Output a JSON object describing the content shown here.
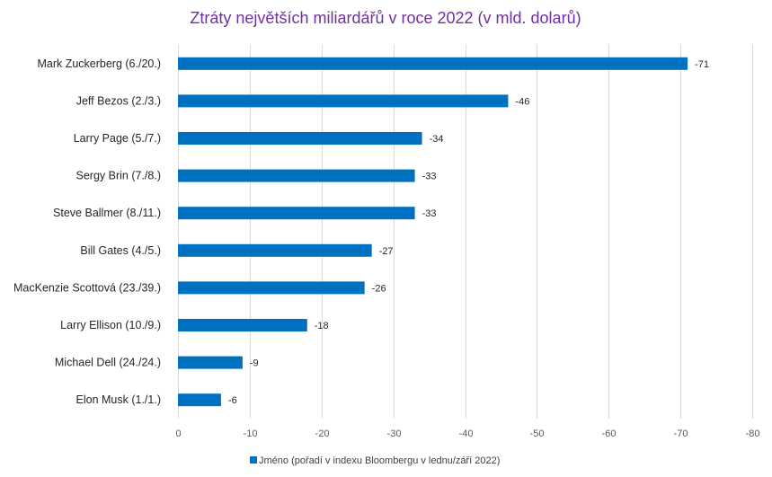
{
  "chart_data": {
    "type": "bar",
    "orientation": "horizontal",
    "title": "Ztráty největších miliardářů v roce 2022 (v mld. dolarů)",
    "categories": [
      "Mark Zuckerberg (6./20.)",
      "Jeff Bezos (2./3.)",
      "Larry Page (5./7.)",
      "Sergy Brin (7./8.)",
      "Steve Ballmer (8./11.)",
      "Bill Gates (4./5.)",
      "MacKenzie Scottová (23./39.)",
      "Larry Ellison (10./9.)",
      "Michael Dell (24./24.)",
      "Elon Musk (1./1.)"
    ],
    "series": [
      {
        "name": "Jméno (pořadí v indexu Bloombergu v lednu/září 2022)",
        "values": [
          -71,
          -46,
          -34,
          -33,
          -33,
          -27,
          -26,
          -18,
          -9,
          -6
        ],
        "color": "#0070c0"
      }
    ],
    "xlim": [
      0,
      -80
    ],
    "xticks": [
      0,
      -10,
      -20,
      -30,
      -40,
      -50,
      -60,
      -70,
      -80
    ],
    "grid": true,
    "legend_position": "bottom"
  }
}
